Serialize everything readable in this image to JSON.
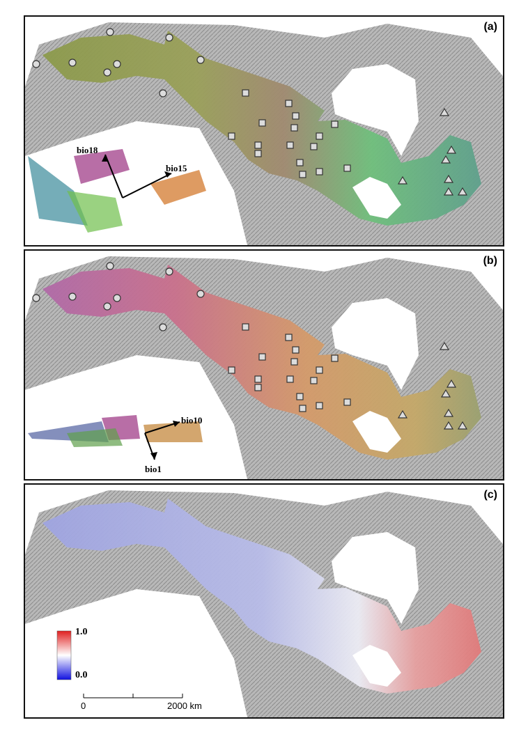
{
  "panels": [
    {
      "id": "a",
      "label": "(a)",
      "vector_labels": [
        "bio18",
        "bio15"
      ]
    },
    {
      "id": "b",
      "label": "(b)",
      "vector_labels": [
        "bio10",
        "bio1"
      ]
    },
    {
      "id": "c",
      "label": "(c)"
    }
  ],
  "legend": {
    "max_label": "1.0",
    "min_label": "0.0",
    "max_color": "#e02020",
    "mid_color": "#ffffff",
    "min_color": "#1010e0"
  },
  "scale_bar": {
    "start_label": "0",
    "end_label": "2000 km"
  },
  "symbols": {
    "circle": "circle-sites-west",
    "square": "square-sites-central",
    "triangle": "triangle-sites-east"
  }
}
